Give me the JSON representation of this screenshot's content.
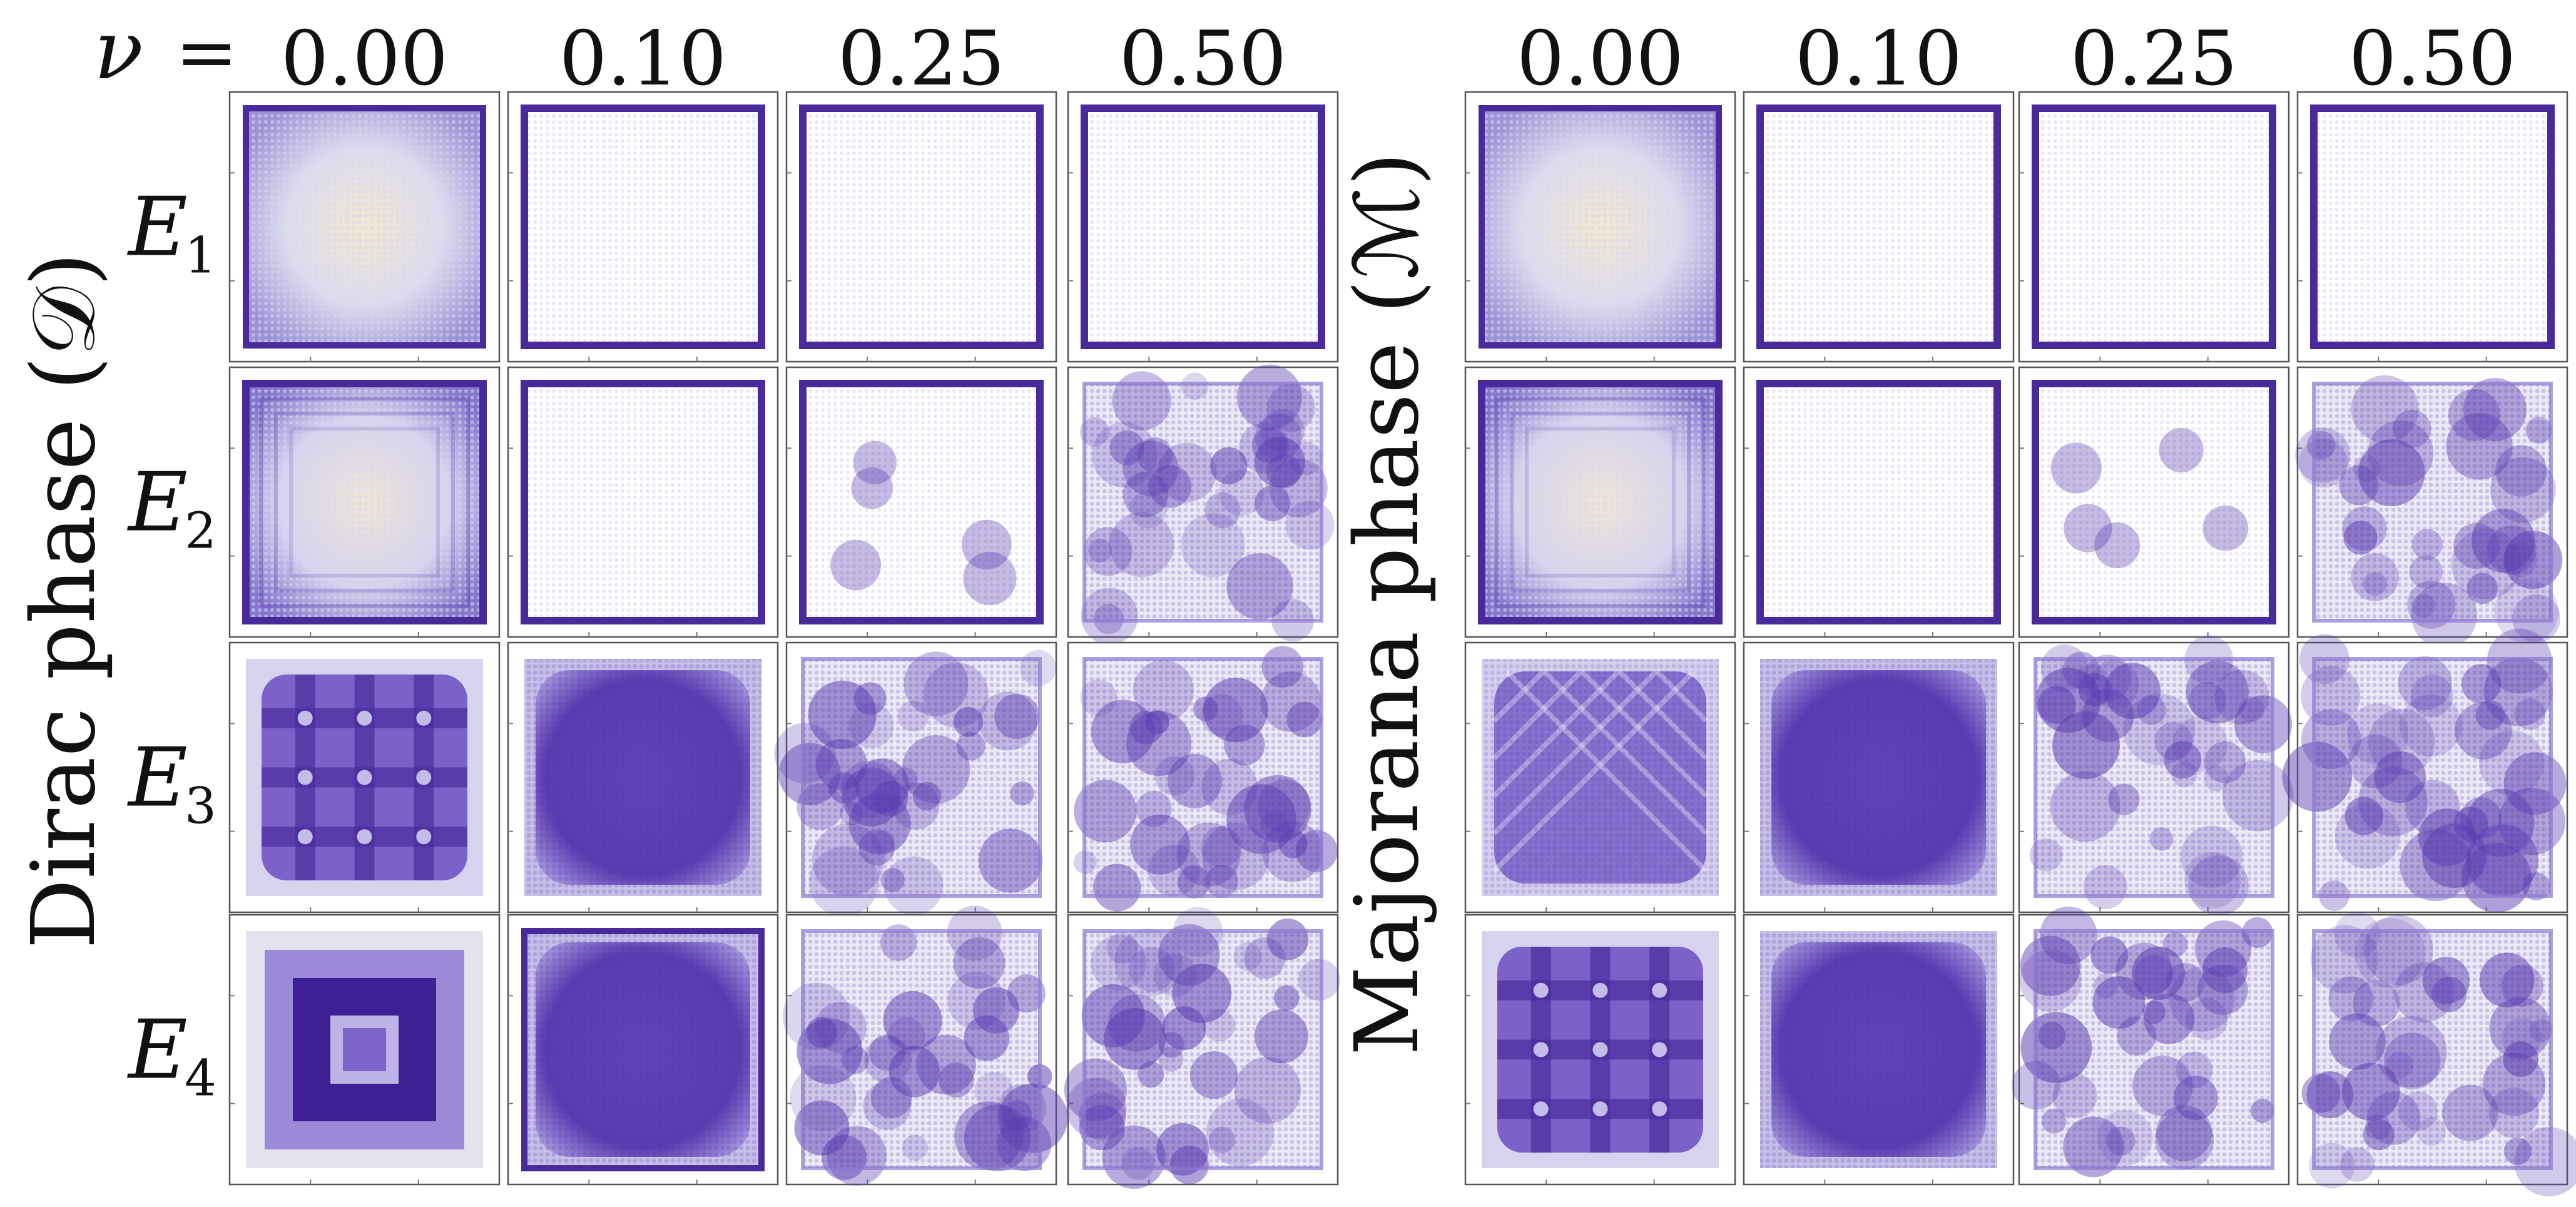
{
  "figure": {
    "nu_symbol": "ν",
    "nu_equals": "=",
    "row_label_letter": "E",
    "rows": [
      "1",
      "2",
      "3",
      "4"
    ],
    "groups": [
      {
        "phase_label": "Dirac phase (𝒟)",
        "columns": [
          "0.00",
          "0.10",
          "0.25",
          "0.50"
        ]
      },
      {
        "phase_label": "Majorana phase (ℳ)",
        "columns": [
          "0.00",
          "0.10",
          "0.25",
          "0.50"
        ]
      }
    ],
    "panel_patterns": [
      [
        "edge-soft",
        "edge-sharp",
        "edge-sharp",
        "edge-sharp",
        "edge-soft",
        "edge-sharp",
        "edge-sharp",
        "edge-sharp"
      ],
      [
        "edge-layered",
        "edge-clean",
        "edge-spots",
        "bulk-disorder",
        "edge-layered",
        "edge-clean",
        "edge-spots",
        "bulk-disorder"
      ],
      [
        "bulk-grid3",
        "bulk-dense",
        "bulk-disorder",
        "bulk-disorder",
        "bulk-checker",
        "bulk-dense",
        "bulk-disorder",
        "bulk-disorder"
      ],
      [
        "bulk-ring",
        "bulk-dense-edge",
        "bulk-disorder",
        "bulk-disorder",
        "bulk-grid3",
        "bulk-dense",
        "bulk-disorder",
        "bulk-disorder"
      ]
    ],
    "colors": {
      "edge": "#4a2a9a",
      "bulk": "#5a3cb0",
      "light": "#c9c4ea",
      "warm": "#f1e7d2"
    }
  }
}
